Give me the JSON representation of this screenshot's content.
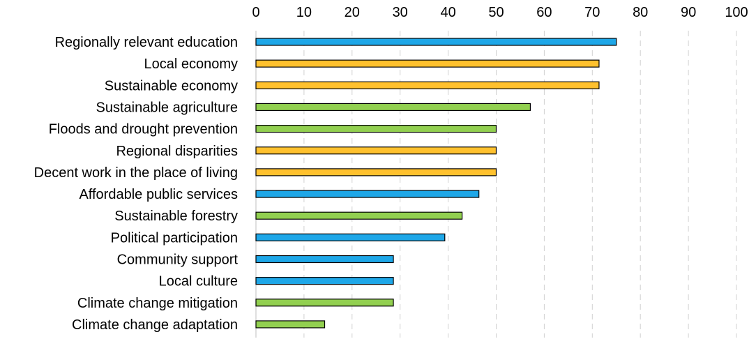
{
  "chart_data": {
    "type": "bar",
    "orientation": "horizontal",
    "title": "",
    "xlabel": "",
    "ylabel": "",
    "xlim": [
      0,
      100
    ],
    "x_ticks": [
      0,
      10,
      20,
      30,
      40,
      50,
      60,
      70,
      80,
      90,
      100
    ],
    "x_tick_labels": [
      "0",
      "10",
      "20",
      "30",
      "40",
      "50",
      "60",
      "70",
      "80",
      "90",
      "100"
    ],
    "axis_position": "top",
    "grid": "vertical-dashed",
    "groups": {
      "blue": "#1ea7e8",
      "orange": "#ffc12e",
      "green": "#92d050"
    },
    "categories": [
      "Regionally relevant education",
      "Local economy",
      "Sustainable economy",
      "Sustainable agriculture",
      "Floods and drought prevention",
      "Regional disparities",
      "Decent work in the place of living",
      "Affordable public services",
      "Sustainable forestry",
      "Political participation",
      "Community support",
      "Local culture",
      "Climate change mitigation",
      "Climate change adaptation"
    ],
    "values": [
      75,
      71.4,
      71.4,
      57.1,
      50,
      50,
      50,
      46.4,
      42.9,
      39.3,
      28.6,
      28.6,
      28.6,
      14.3
    ],
    "bar_groups": [
      "blue",
      "orange",
      "orange",
      "green",
      "green",
      "orange",
      "orange",
      "blue",
      "green",
      "blue",
      "blue",
      "blue",
      "green",
      "green"
    ]
  }
}
